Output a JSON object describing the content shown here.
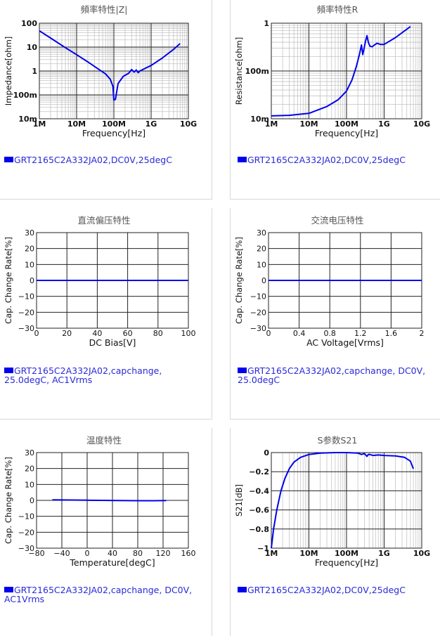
{
  "chart_data": [
    {
      "id": "c1",
      "type": "line",
      "title": "頻率特性|Z|",
      "xlabel": "Frequency[Hz]",
      "ylabel": "Impedance[ohm]",
      "xscale": "log",
      "yscale": "log",
      "xlim": [
        1000000,
        10000000000
      ],
      "ylim": [
        0.01,
        100
      ],
      "xticks": [
        {
          "v": 1000000,
          "l": "1M"
        },
        {
          "v": 10000000,
          "l": "10M"
        },
        {
          "v": 100000000,
          "l": "100M"
        },
        {
          "v": 1000000000,
          "l": "1G"
        },
        {
          "v": 10000000000,
          "l": "10G"
        }
      ],
      "yticks": [
        {
          "v": 0.01,
          "l": "10m"
        },
        {
          "v": 0.1,
          "l": "100m"
        },
        {
          "v": 1,
          "l": "1"
        },
        {
          "v": 10,
          "l": "10"
        },
        {
          "v": 100,
          "l": "100"
        }
      ],
      "grid": true,
      "series": [
        {
          "name": "GRT2165C2A332JA02,DC0V,25degC",
          "color": "#0000ee",
          "x": [
            1000000,
            2000000,
            5000000,
            10000000,
            20000000,
            40000000,
            60000000,
            80000000,
            95000000,
            100000000,
            110000000,
            130000000,
            180000000,
            250000000,
            300000000,
            350000000,
            400000000,
            450000000,
            500000000,
            700000000,
            1000000000,
            2000000000,
            4000000000,
            6000000000
          ],
          "y": [
            48,
            24,
            9.5,
            4.8,
            2.4,
            1.15,
            0.75,
            0.45,
            0.22,
            0.06,
            0.065,
            0.3,
            0.6,
            0.8,
            1.15,
            0.9,
            1.1,
            0.85,
            1.0,
            1.3,
            1.7,
            3.5,
            8,
            14
          ]
        }
      ],
      "legend": [
        "GRT2165C2A332JA02,DC0V,25degC"
      ]
    },
    {
      "id": "c2",
      "type": "line",
      "title": "頻率特性R",
      "xlabel": "Frequency[Hz]",
      "ylabel": "Resistance[ohm]",
      "xscale": "log",
      "yscale": "log",
      "xlim": [
        1000000,
        10000000000
      ],
      "ylim": [
        0.01,
        1
      ],
      "xticks": [
        {
          "v": 1000000,
          "l": "1M"
        },
        {
          "v": 10000000,
          "l": "10M"
        },
        {
          "v": 100000000,
          "l": "100M"
        },
        {
          "v": 1000000000,
          "l": "1G"
        },
        {
          "v": 10000000000,
          "l": "10G"
        }
      ],
      "yticks": [
        {
          "v": 0.01,
          "l": "10m"
        },
        {
          "v": 0.1,
          "l": "100m"
        },
        {
          "v": 1,
          "l": "1"
        }
      ],
      "grid": true,
      "series": [
        {
          "name": "GRT2165C2A332JA02,DC0V,25degC",
          "color": "#0000ee",
          "x": [
            1000000,
            3000000,
            10000000,
            30000000,
            60000000,
            100000000,
            140000000,
            180000000,
            220000000,
            250000000,
            270000000,
            290000000,
            320000000,
            350000000,
            380000000,
            420000000,
            480000000,
            550000000,
            650000000,
            800000000,
            1000000000,
            2000000000,
            5000000000
          ],
          "y": [
            0.0115,
            0.0118,
            0.013,
            0.018,
            0.025,
            0.038,
            0.065,
            0.12,
            0.22,
            0.35,
            0.22,
            0.28,
            0.42,
            0.55,
            0.4,
            0.33,
            0.32,
            0.35,
            0.38,
            0.36,
            0.36,
            0.5,
            0.85
          ]
        }
      ],
      "legend": [
        "GRT2165C2A332JA02,DC0V,25degC"
      ]
    },
    {
      "id": "c3",
      "type": "line",
      "title": "直流偏压特性",
      "xlabel": "DC Bias[V]",
      "ylabel": "Cap. Change Rate[%]",
      "xscale": "linear",
      "yscale": "linear",
      "xlim": [
        0,
        100
      ],
      "ylim": [
        -30,
        30
      ],
      "xticks": [
        {
          "v": 0,
          "l": "0"
        },
        {
          "v": 20,
          "l": "20"
        },
        {
          "v": 40,
          "l": "40"
        },
        {
          "v": 60,
          "l": "60"
        },
        {
          "v": 80,
          "l": "80"
        },
        {
          "v": 100,
          "l": "100"
        }
      ],
      "yticks": [
        {
          "v": -30,
          "l": "−30"
        },
        {
          "v": -20,
          "l": "−20"
        },
        {
          "v": -10,
          "l": "−10"
        },
        {
          "v": 0,
          "l": "0"
        },
        {
          "v": 10,
          "l": "10"
        },
        {
          "v": 20,
          "l": "20"
        },
        {
          "v": 30,
          "l": "30"
        }
      ],
      "grid": true,
      "series": [
        {
          "name": "GRT2165C2A332JA02,capchange, 25.0degC, AC1Vrms",
          "color": "#0000ee",
          "x": [
            0,
            100
          ],
          "y": [
            0,
            0
          ]
        }
      ],
      "legend": [
        "GRT2165C2A332JA02,capchange,",
        "25.0degC, AC1Vrms"
      ]
    },
    {
      "id": "c4",
      "type": "line",
      "title": "交流电压特性",
      "xlabel": "AC Voltage[Vrms]",
      "ylabel": "Cap. Change Rate[%]",
      "xscale": "linear",
      "yscale": "linear",
      "xlim": [
        0,
        2
      ],
      "ylim": [
        -30,
        30
      ],
      "xticks": [
        {
          "v": 0,
          "l": "0"
        },
        {
          "v": 0.4,
          "l": "0.4"
        },
        {
          "v": 0.8,
          "l": "0.8"
        },
        {
          "v": 1.2,
          "l": "1.2"
        },
        {
          "v": 1.6,
          "l": "1.6"
        },
        {
          "v": 2,
          "l": "2"
        }
      ],
      "yticks": [
        {
          "v": -30,
          "l": "−30"
        },
        {
          "v": -20,
          "l": "−20"
        },
        {
          "v": -10,
          "l": "−10"
        },
        {
          "v": 0,
          "l": "0"
        },
        {
          "v": 10,
          "l": "10"
        },
        {
          "v": 20,
          "l": "20"
        },
        {
          "v": 30,
          "l": "30"
        }
      ],
      "grid": true,
      "series": [
        {
          "name": "GRT2165C2A332JA02,capchange, DC0V, 25.0degC",
          "color": "#0000ee",
          "x": [
            0,
            2
          ],
          "y": [
            0,
            0
          ]
        }
      ],
      "legend": [
        "GRT2165C2A332JA02,capchange, DC0V,",
        "25.0degC"
      ]
    },
    {
      "id": "c5",
      "type": "line",
      "title": "温度特性",
      "xlabel": "Temperature[degC]",
      "ylabel": "Cap. Change Rate[%]",
      "xscale": "linear",
      "yscale": "linear",
      "xlim": [
        -80,
        160
      ],
      "ylim": [
        -30,
        30
      ],
      "xticks": [
        {
          "v": -80,
          "l": "−80"
        },
        {
          "v": -40,
          "l": "−40"
        },
        {
          "v": 0,
          "l": "0"
        },
        {
          "v": 40,
          "l": "40"
        },
        {
          "v": 80,
          "l": "80"
        },
        {
          "v": 120,
          "l": "120"
        },
        {
          "v": 160,
          "l": "160"
        }
      ],
      "yticks": [
        {
          "v": -30,
          "l": "−30"
        },
        {
          "v": -20,
          "l": "−20"
        },
        {
          "v": -10,
          "l": "−10"
        },
        {
          "v": 0,
          "l": "0"
        },
        {
          "v": 10,
          "l": "10"
        },
        {
          "v": 20,
          "l": "20"
        },
        {
          "v": 30,
          "l": "30"
        }
      ],
      "grid": true,
      "series": [
        {
          "name": "GRT2165C2A332JA02,capchange, DC0V, AC1Vrms",
          "color": "#0000ee",
          "x": [
            -55,
            -25,
            0,
            25,
            50,
            85,
            105,
            125
          ],
          "y": [
            0.3,
            0.2,
            0.1,
            0,
            -0.1,
            -0.2,
            -0.2,
            -0.1
          ]
        }
      ],
      "legend": [
        "GRT2165C2A332JA02,capchange, DC0V,",
        "AC1Vrms"
      ]
    },
    {
      "id": "c6",
      "type": "line",
      "title": "S参数S21",
      "xlabel": "Frequency[Hz]",
      "ylabel": "S21[dB]",
      "xscale": "log",
      "yscale": "linear",
      "xlim": [
        1000000,
        10000000000
      ],
      "ylim": [
        -1,
        0
      ],
      "xticks": [
        {
          "v": 1000000,
          "l": "1M"
        },
        {
          "v": 10000000,
          "l": "10M"
        },
        {
          "v": 100000000,
          "l": "100M"
        },
        {
          "v": 1000000000,
          "l": "1G"
        },
        {
          "v": 10000000000,
          "l": "10G"
        }
      ],
      "yticks": [
        {
          "v": -1,
          "l": "−1"
        },
        {
          "v": -0.8,
          "l": "−0.8"
        },
        {
          "v": -0.6,
          "l": "−0.6"
        },
        {
          "v": -0.4,
          "l": "−0.4"
        },
        {
          "v": -0.2,
          "l": "−0.2"
        },
        {
          "v": 0,
          "l": "0"
        }
      ],
      "grid": true,
      "series": [
        {
          "name": "GRT2165C2A332JA02,DC0V,25degC",
          "color": "#0000ee",
          "x": [
            1000000,
            1150000,
            1400000,
            1800000,
            2300000,
            3000000,
            4000000,
            6000000,
            10000000,
            20000000,
            50000000,
            100000000,
            200000000,
            250000000,
            300000000,
            350000000,
            380000000,
            420000000,
            500000000,
            700000000,
            1000000000,
            2000000000,
            3500000000,
            5000000000,
            6000000000
          ],
          "y": [
            -1,
            -0.8,
            -0.6,
            -0.4,
            -0.27,
            -0.17,
            -0.1,
            -0.05,
            -0.02,
            -0.005,
            0,
            0,
            -0.005,
            -0.02,
            -0.01,
            -0.04,
            -0.02,
            -0.02,
            -0.03,
            -0.025,
            -0.03,
            -0.035,
            -0.05,
            -0.09,
            -0.17
          ]
        }
      ],
      "legend": [
        "GRT2165C2A332JA02,DC0V,25degC"
      ]
    }
  ]
}
